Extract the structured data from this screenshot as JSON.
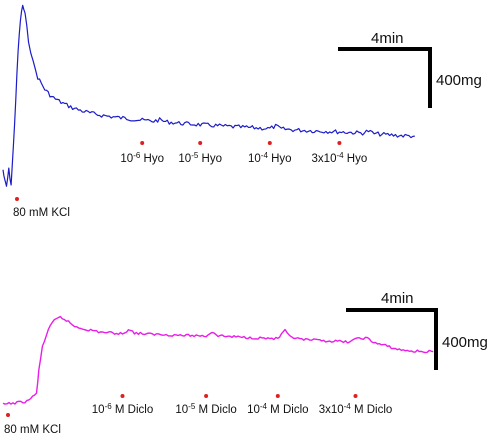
{
  "chart_data": [
    {
      "type": "line",
      "title": "",
      "trace_color": "#1c1cc8",
      "marker_color": "#e02020",
      "x_unit": "min",
      "y_unit": "mg",
      "baseline_mg": 0,
      "series": [
        {
          "values_time_min": [
            0.0,
            0.15,
            0.3,
            0.5,
            0.7,
            0.9,
            1.1,
            1.3,
            1.5,
            1.7,
            1.9,
            2.2,
            2.6,
            3.0,
            3.6,
            4.2,
            5.0,
            6.0,
            7.0,
            8.0,
            9.0,
            10.0,
            11.0,
            12.0,
            13.0,
            13.5,
            14.0,
            15.0,
            16.0,
            17.0,
            18.0,
            19.0,
            20.0,
            21.0,
            22.0,
            23.0,
            23.5,
            24.0,
            25.0,
            26.0,
            27.0,
            28.0,
            29.0,
            30.0,
            31.0,
            31.5,
            32.0,
            33.0,
            34.0,
            35.0,
            35.5
          ],
          "values_tension_mg": [
            120,
            60,
            30,
            120,
            40,
            250,
            500,
            760,
            930,
            1010,
            960,
            820,
            700,
            620,
            555,
            515,
            485,
            455,
            435,
            420,
            410,
            402,
            395,
            388,
            383,
            390,
            380,
            373,
            368,
            364,
            360,
            356,
            352,
            349,
            346,
            343,
            356,
            341,
            336,
            333,
            330,
            328,
            325,
            322,
            319,
            330,
            315,
            310,
            306,
            303,
            302
          ]
        }
      ],
      "markers": [
        {
          "label_prefix": "80 mM KCl",
          "label_exp": "",
          "label_suffix": "",
          "t_min": 0.5
        },
        {
          "label_prefix": "10",
          "label_exp": "-6",
          "label_suffix": " Hyo",
          "t_min": 12.0
        },
        {
          "label_prefix": "10",
          "label_exp": "-5",
          "label_suffix": " Hyo",
          "t_min": 17.0
        },
        {
          "label_prefix": "10",
          "label_exp": "-4",
          "label_suffix": " Hyo",
          "t_min": 23.0
        },
        {
          "label_prefix": "3x10",
          "label_exp": "-4",
          "label_suffix": " Hyo",
          "t_min": 29.0
        }
      ],
      "scale_bar": {
        "time_label": "4min",
        "force_label": "400mg",
        "time_min": 4,
        "force_mg": 400
      }
    },
    {
      "type": "line",
      "title": "",
      "trace_color": "#e81ee8",
      "marker_color": "#e02020",
      "x_unit": "min",
      "y_unit": "mg",
      "baseline_mg": 0,
      "series": [
        {
          "values_time_min": [
            0.0,
            1.0,
            2.0,
            2.8,
            3.0,
            3.3,
            3.8,
            4.3,
            4.8,
            5.3,
            6.0,
            7.0,
            8.0,
            9.0,
            10.0,
            10.5,
            11.0,
            12.0,
            13.0,
            14.0,
            15.0,
            16.0,
            17.0,
            17.5,
            18.0,
            19.0,
            20.0,
            21.0,
            22.0,
            23.0,
            23.6,
            24.0,
            25.0,
            26.0,
            27.0,
            28.0,
            29.0,
            29.8,
            30.5,
            31.0,
            32.0,
            33.0,
            34.0,
            35.0,
            36.0
          ],
          "values_tension_mg": [
            10,
            20,
            30,
            80,
            230,
            390,
            500,
            560,
            580,
            560,
            520,
            500,
            485,
            478,
            472,
            500,
            478,
            470,
            468,
            465,
            462,
            460,
            458,
            485,
            460,
            454,
            450,
            446,
            443,
            440,
            492,
            452,
            434,
            430,
            426,
            422,
            419,
            445,
            442,
            415,
            395,
            370,
            360,
            356,
            355
          ]
        }
      ],
      "markers": [
        {
          "label_prefix": "80 mM KCl",
          "label_exp": "",
          "label_suffix": "",
          "t_min": 2.5
        },
        {
          "label_prefix": "10",
          "label_exp": "-6",
          "label_suffix": " M Diclo",
          "t_min": 10.0
        },
        {
          "label_prefix": "10",
          "label_exp": "-5",
          "label_suffix": " M Diclo",
          "t_min": 17.0
        },
        {
          "label_prefix": "10",
          "label_exp": "-4",
          "label_suffix": " M Diclo",
          "t_min": 23.0
        },
        {
          "label_prefix": "3x10",
          "label_exp": "-4",
          "label_suffix": " M Diclo",
          "t_min": 29.5
        }
      ],
      "scale_bar": {
        "time_label": "4min",
        "force_label": "400mg",
        "time_min": 4,
        "force_mg": 400
      }
    }
  ]
}
